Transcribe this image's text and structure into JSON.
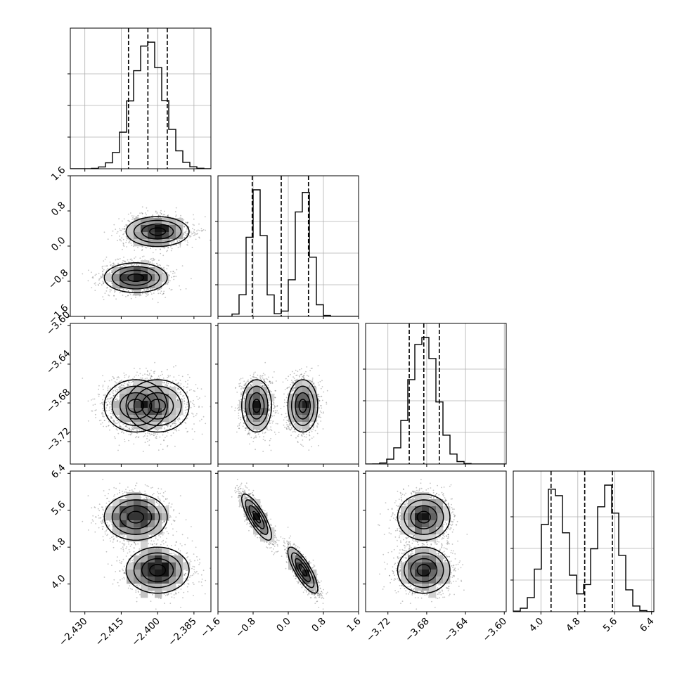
{
  "chart_data": {
    "type": "corner",
    "grid": true,
    "dimensions": [
      {
        "name": "p0",
        "label": "",
        "range": [
          -2.436,
          -2.378
        ],
        "ticks": [
          -2.43,
          -2.415,
          -2.4,
          -2.385
        ],
        "tick_labels": [
          "−2.430",
          "−2.415",
          "−2.400",
          "−2.385"
        ],
        "quantiles": [
          -2.412,
          -2.404,
          -2.396
        ],
        "modes": [
          {
            "mu": -2.404,
            "sigma": 0.0065,
            "w": 1
          }
        ]
      },
      {
        "name": "p1",
        "label": "",
        "range": [
          -1.6,
          1.6
        ],
        "ticks": [
          -1.6,
          -0.8,
          0.0,
          0.8,
          1.6
        ],
        "tick_labels": [
          "−1.6",
          "−0.8",
          "0.0",
          "0.8",
          "1.6"
        ],
        "quantiles": [
          -0.82,
          -0.16,
          0.46
        ],
        "modes": [
          {
            "mu": -0.72,
            "sigma": 0.17,
            "w": 0.5
          },
          {
            "mu": 0.35,
            "sigma": 0.17,
            "w": 0.5
          }
        ]
      },
      {
        "name": "p2",
        "label": "",
        "range": [
          -3.743,
          -3.598
        ],
        "ticks": [
          -3.72,
          -3.68,
          -3.64,
          -3.6
        ],
        "tick_labels": [
          "−3.72",
          "−3.68",
          "−3.64",
          "−3.60"
        ],
        "quantiles": [
          -3.698,
          -3.683,
          -3.667
        ],
        "modes": [
          {
            "mu": -3.683,
            "sigma": 0.0135,
            "w": 1
          }
        ]
      },
      {
        "name": "p3",
        "label": "",
        "range": [
          3.4,
          6.45
        ],
        "ticks": [
          4.0,
          4.8,
          5.6,
          6.4
        ],
        "tick_labels": [
          "4.0",
          "4.8",
          "5.6",
          "6.4"
        ],
        "quantiles": [
          4.22,
          4.95,
          5.55
        ],
        "modes": [
          {
            "mu": 4.3,
            "sigma": 0.25,
            "w": 0.5
          },
          {
            "mu": 5.45,
            "sigma": 0.25,
            "w": 0.5
          }
        ]
      }
    ],
    "joint_clusters": [
      [
        -2.4,
        0.33,
        -3.683,
        4.3,
        0.5
      ],
      [
        -2.409,
        -0.72,
        -3.683,
        5.45,
        0.5
      ]
    ],
    "correlations": {
      "1-3": -0.8
    },
    "colors": {
      "contour": "#000000",
      "points": "#555555",
      "grid": "#b0b0b0",
      "hist": "#000000"
    }
  }
}
